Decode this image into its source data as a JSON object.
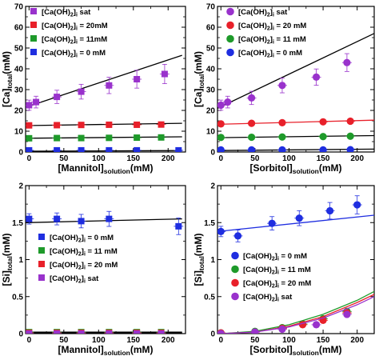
{
  "chart_data": [
    {
      "type": "scatter",
      "xlabel": "[Mannitol]solution(mM)",
      "ylabel": "[Ca]total(mM)",
      "xlabel_parts": {
        "main": "[Mannitol]",
        "sub": "solution",
        "tail": "(mM)"
      },
      "ylabel_parts": {
        "main": "[Ca]",
        "sub": "total",
        "tail": "(mM)"
      },
      "xlim": [
        -5,
        225
      ],
      "ylim": [
        0,
        70
      ],
      "xticks": [
        0,
        50,
        100,
        150,
        200
      ],
      "yticks": [
        0,
        10,
        20,
        30,
        40,
        50,
        60,
        70
      ],
      "legend_position": "top-left",
      "series": [
        {
          "name": "[Ca(OH)2]i sat",
          "label_parts": [
            "[Ca(OH)",
            "2",
            "]",
            "i",
            " sat"
          ],
          "color": "#9932cc",
          "marker": "square",
          "x": [
            0,
            10,
            40,
            75,
            115,
            155,
            195
          ],
          "y": [
            22.5,
            24,
            26.5,
            29,
            32,
            35,
            37.5
          ],
          "fit": {
            "x": [
              -5,
              220
            ],
            "y": [
              21.5,
              46.5
            ]
          }
        },
        {
          "name": "[Ca(OH)2]i = 20mM",
          "label_parts": [
            "[Ca(OH)",
            "2",
            "]",
            "i",
            " = 20mM"
          ],
          "color": "#e8202a",
          "marker": "square",
          "x": [
            0,
            40,
            75,
            115,
            155,
            190
          ],
          "y": [
            12.8,
            12.9,
            13,
            13.1,
            13.1,
            13.2
          ],
          "fit": {
            "x": [
              -5,
              220
            ],
            "y": [
              12.7,
              13.8
            ]
          }
        },
        {
          "name": "[Ca(OH)2]i = 11mM",
          "label_parts": [
            "[Ca(OH)",
            "2",
            "]",
            "i",
            " = 11mM"
          ],
          "color": "#1e9a2a",
          "marker": "square",
          "x": [
            0,
            40,
            75,
            115,
            155,
            190
          ],
          "y": [
            6.6,
            6.7,
            6.7,
            6.8,
            6.9,
            7.0
          ],
          "fit": {
            "x": [
              -5,
              220
            ],
            "y": [
              6.6,
              7.3
            ]
          }
        },
        {
          "name": "[Ca(OH)2]i = 0 mM",
          "label_parts": [
            "[Ca(OH)",
            "2",
            "]",
            "i",
            " = 0 mM"
          ],
          "color": "#1f2ee0",
          "marker": "square",
          "x": [
            0,
            40,
            75,
            115,
            155,
            215
          ],
          "y": [
            0.8,
            0.8,
            0.8,
            0.8,
            0.8,
            0.8
          ],
          "fit": {
            "x": [
              -5,
              220
            ],
            "y": [
              0.4,
              0.7
            ]
          }
        }
      ]
    },
    {
      "type": "scatter",
      "xlabel": "[Sorbitol]solution(mM)",
      "ylabel": "[Ca]total(mM)",
      "xlabel_parts": {
        "main": "[Sorbitol]",
        "sub": "solution",
        "tail": "(mM)"
      },
      "ylabel_parts": {
        "main": "[Ca]",
        "sub": "total",
        "tail": "(mM)"
      },
      "xlim": [
        -5,
        225
      ],
      "ylim": [
        0,
        70
      ],
      "xticks": [
        0,
        50,
        100,
        150,
        200
      ],
      "yticks": [
        0,
        10,
        20,
        30,
        40,
        50,
        60,
        70
      ],
      "legend_position": "top-left",
      "series": [
        {
          "name": "[Ca(OH)2]i sat",
          "label_parts": [
            "[Ca(OH)",
            "2",
            "]",
            "i",
            " sat"
          ],
          "color": "#9932cc",
          "marker": "circle",
          "x": [
            0,
            10,
            45,
            90,
            140,
            185
          ],
          "y": [
            22.5,
            24,
            26,
            32,
            36,
            43
          ],
          "fit": {
            "x": [
              -5,
              225
            ],
            "y": [
              21,
              57
            ]
          }
        },
        {
          "name": "[Ca(OH)2]i = 20 mM",
          "label_parts": [
            "[Ca(OH)",
            "2",
            "]",
            "i",
            " = 20 mM"
          ],
          "color": "#e8202a",
          "marker": "circle",
          "x": [
            0,
            45,
            90,
            150,
            190
          ],
          "y": [
            13.5,
            13.8,
            14.1,
            14.5,
            14.8
          ],
          "fit": {
            "x": [
              -5,
              225
            ],
            "y": [
              13.3,
              15.3
            ]
          }
        },
        {
          "name": "[Ca(OH)2]i = 11 mM",
          "label_parts": [
            "[Ca(OH)",
            "2",
            "]",
            "i",
            " = 11 mM"
          ],
          "color": "#1e9a2a",
          "marker": "circle",
          "x": [
            0,
            45,
            90,
            150,
            190
          ],
          "y": [
            7.0,
            7.1,
            7.2,
            7.4,
            7.6
          ],
          "fit": {
            "x": [
              -5,
              225
            ],
            "y": [
              6.9,
              7.9
            ]
          }
        },
        {
          "name": "[Ca(OH)2]i = 0 mM",
          "label_parts": [
            "[Ca(OH)",
            "2",
            "]",
            "i",
            " = 0 mM"
          ],
          "color": "#1f2ee0",
          "marker": "circle",
          "x": [
            0,
            45,
            90,
            150,
            190
          ],
          "y": [
            1.0,
            1.0,
            1.0,
            1.0,
            1.1
          ],
          "fit": {
            "x": [
              -5,
              225
            ],
            "y": [
              0.7,
              1.4
            ]
          }
        }
      ]
    },
    {
      "type": "scatter",
      "xlabel": "[Mannitol]solution(mM)",
      "ylabel": "[Si]total(mM)",
      "xlabel_parts": {
        "main": "[Mannitol]",
        "sub": "solution",
        "tail": "(mM)"
      },
      "ylabel_parts": {
        "main": "[Si]",
        "sub": "total",
        "tail": "(mM)"
      },
      "xlim": [
        -5,
        225
      ],
      "ylim": [
        0,
        2
      ],
      "xticks": [
        0,
        50,
        100,
        150,
        200
      ],
      "yticks": [
        0,
        0.5,
        1,
        1.5,
        2
      ],
      "legend_position": "center-left",
      "series": [
        {
          "name": "[Ca(OH)2]i = 0 mM",
          "label_parts": [
            "[Ca(OH)",
            "2",
            "]",
            "i",
            " = 0 mM"
          ],
          "color": "#1f2ee0",
          "marker": "square",
          "x": [
            0,
            40,
            75,
            115,
            215
          ],
          "y": [
            1.55,
            1.55,
            1.52,
            1.55,
            1.45
          ],
          "fit": {
            "x": [
              -5,
              220
            ],
            "y": [
              1.5,
              1.55
            ]
          }
        },
        {
          "name": "[Ca(OH)2]i = 11 mM",
          "label_parts": [
            "[Ca(OH)",
            "2",
            "]",
            "i",
            " = 11 mM"
          ],
          "color": "#1e9a2a",
          "marker": "square",
          "x": [
            0,
            40,
            75,
            115,
            155,
            190
          ],
          "y": [
            0.02,
            0.02,
            0.02,
            0.02,
            0.02,
            0.02
          ],
          "fit": {
            "x": [
              -5,
              220
            ],
            "y": [
              0.02,
              0.02
            ]
          }
        },
        {
          "name": "[Ca(OH)2]i = 20 mM",
          "label_parts": [
            "[Ca(OH)",
            "2",
            "]",
            "i",
            " = 20 mM"
          ],
          "color": "#e8202a",
          "marker": "square",
          "x": [
            0,
            40,
            75,
            115,
            155,
            190
          ],
          "y": [
            0.01,
            0.01,
            0.01,
            0.01,
            0.01,
            0.01
          ],
          "fit": {
            "x": [
              -5,
              220
            ],
            "y": [
              0.01,
              0.01
            ]
          }
        },
        {
          "name": "[Ca(OH)2]i sat",
          "label_parts": [
            "[Ca(OH)",
            "2",
            "]",
            "i",
            " sat"
          ],
          "color": "#9932cc",
          "marker": "square",
          "x": [
            0,
            40,
            75,
            115,
            155,
            190
          ],
          "y": [
            0.0,
            0.0,
            0.0,
            0.0,
            0.0,
            0.0
          ],
          "fit": {
            "x": [
              -5,
              220
            ],
            "y": [
              0.0,
              0.0
            ]
          }
        }
      ]
    },
    {
      "type": "scatter",
      "xlabel": "[Sorbitol]solution(mM)",
      "ylabel": "[Si]total(mM)",
      "xlabel_parts": {
        "main": "[Sorbitol]",
        "sub": "solution",
        "tail": "(mM)"
      },
      "ylabel_parts": {
        "main": "[Si]",
        "sub": "total",
        "tail": "(mM)"
      },
      "xlim": [
        -5,
        225
      ],
      "ylim": [
        0,
        2
      ],
      "xticks": [
        0,
        50,
        100,
        150,
        200
      ],
      "yticks": [
        0,
        0.5,
        1,
        1.5,
        2
      ],
      "legend_position": "center-left",
      "series": [
        {
          "name": "[Ca(OH)2]i = 0 mM",
          "label_parts": [
            "[Ca(OH)",
            "2",
            "]",
            "i",
            " = 0 mM"
          ],
          "color": "#1f2ee0",
          "marker": "circle",
          "x": [
            0,
            25,
            75,
            115,
            160,
            200
          ],
          "y": [
            1.38,
            1.32,
            1.49,
            1.56,
            1.66,
            1.74
          ],
          "fit": {
            "x": [
              -5,
              225
            ],
            "y": [
              1.38,
              1.6
            ]
          }
        },
        {
          "name": "[Ca(OH)2]i = 11 mM",
          "label_parts": [
            "[Ca(OH)",
            "2",
            "]",
            "i",
            " = 11 mM"
          ],
          "color": "#1e9a2a",
          "marker": "circle",
          "x": [
            0,
            50,
            90,
            120,
            150,
            185
          ],
          "y": [
            0.01,
            0.03,
            0.08,
            0.13,
            0.2,
            0.3
          ],
          "fit": {
            "x": [
              0,
              50,
              100,
              150,
              200,
              225
            ],
            "y": [
              0.0,
              0.03,
              0.12,
              0.26,
              0.45,
              0.57
            ]
          }
        },
        {
          "name": "[Ca(OH)2]i = 20 mM",
          "label_parts": [
            "[Ca(OH)",
            "2",
            "]",
            "i",
            " = 20 mM"
          ],
          "color": "#e8202a",
          "marker": "circle",
          "x": [
            0,
            50,
            90,
            120,
            150,
            185
          ],
          "y": [
            0.01,
            0.02,
            0.07,
            0.12,
            0.18,
            0.28
          ],
          "fit": {
            "x": [
              0,
              50,
              100,
              150,
              200,
              225
            ],
            "y": [
              0.0,
              0.02,
              0.1,
              0.23,
              0.42,
              0.53
            ]
          }
        },
        {
          "name": "[Ca(OH)2]i sat",
          "label_parts": [
            "[Ca(OH)",
            "2",
            "]",
            "i",
            " sat"
          ],
          "color": "#9932cc",
          "marker": "circle",
          "x": [
            0,
            50,
            90,
            140,
            185
          ],
          "y": [
            0.0,
            0.02,
            0.06,
            0.12,
            0.26
          ],
          "fit": {
            "x": [
              0,
              50,
              100,
              150,
              200,
              225
            ],
            "y": [
              0.0,
              0.02,
              0.09,
              0.21,
              0.39,
              0.5
            ]
          }
        }
      ]
    }
  ]
}
